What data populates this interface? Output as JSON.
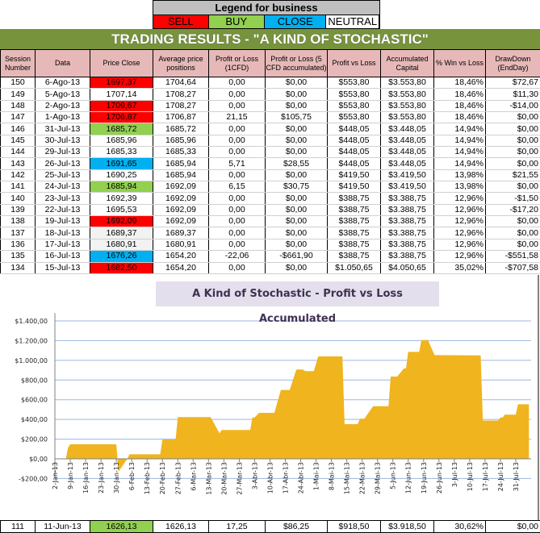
{
  "legend": {
    "title": "Legend for business",
    "items": [
      {
        "label": "SELL",
        "color": "#ff0000"
      },
      {
        "label": "BUY",
        "color": "#92d050"
      },
      {
        "label": "CLOSE",
        "color": "#00b0f0"
      },
      {
        "label": "NEUTRAL",
        "color": "#ffffff"
      }
    ]
  },
  "title": "TRADING RESULTS - \"A KIND OF STOCHASTIC\"",
  "columns": [
    "Session Number",
    "Data",
    "Price Close",
    "Average price positions",
    "Profit or Loss (1CFD)",
    "Profit or Loss (5 CFD accumulated)",
    "Profit vs Loss",
    "Accumulated Capital",
    "% Win vs Loss",
    "DrawDown (EndDay)"
  ],
  "colors": {
    "sell": "#ff0000",
    "buy": "#92d050",
    "close": "#00b0f0",
    "neutral": "#ffffff",
    "grey": "#f2f2f2"
  },
  "rows": [
    [
      "150",
      "6-Ago-13",
      "1697,37",
      "1704,64",
      "0,00",
      "$0,00",
      "$553,80",
      "$3.553,80",
      "18,46%",
      "$72,67",
      "sell"
    ],
    [
      "149",
      "5-Ago-13",
      "1707,14",
      "1708,27",
      "0,00",
      "$0,00",
      "$553,80",
      "$3.553,80",
      "18,46%",
      "$11,30",
      "neutral"
    ],
    [
      "148",
      "2-Ago-13",
      "1709,67",
      "1708,27",
      "0,00",
      "$0,00",
      "$553,80",
      "$3.553,80",
      "18,46%",
      "-$14,00",
      "sell"
    ],
    [
      "147",
      "1-Ago-13",
      "1706,87",
      "1706,87",
      "21,15",
      "$105,75",
      "$553,80",
      "$3.553,80",
      "18,46%",
      "$0,00",
      "sell"
    ],
    [
      "146",
      "31-Jul-13",
      "1685,72",
      "1685,72",
      "0,00",
      "$0,00",
      "$448,05",
      "$3.448,05",
      "14,94%",
      "$0,00",
      "buy"
    ],
    [
      "145",
      "30-Jul-13",
      "1685,96",
      "1685,96",
      "0,00",
      "$0,00",
      "$448,05",
      "$3.448,05",
      "14,94%",
      "$0,00",
      "neutral"
    ],
    [
      "144",
      "29-Jul-13",
      "1685,33",
      "1685,33",
      "0,00",
      "$0,00",
      "$448,05",
      "$3.448,05",
      "14,94%",
      "$0,00",
      "neutral"
    ],
    [
      "143",
      "26-Jul-13",
      "1691,65",
      "1685,94",
      "5,71",
      "$28,55",
      "$448,05",
      "$3.448,05",
      "14,94%",
      "$0,00",
      "close"
    ],
    [
      "142",
      "25-Jul-13",
      "1690,25",
      "1685,94",
      "0,00",
      "$0,00",
      "$419,50",
      "$3.419,50",
      "13,98%",
      "$21,55",
      "neutral"
    ],
    [
      "141",
      "24-Jul-13",
      "1685,94",
      "1692,09",
      "6,15",
      "$30,75",
      "$419,50",
      "$3.419,50",
      "13,98%",
      "$0,00",
      "buy"
    ],
    [
      "140",
      "23-Jul-13",
      "1692,39",
      "1692,09",
      "0,00",
      "$0,00",
      "$388,75",
      "$3.388,75",
      "12,96%",
      "-$1,50",
      "neutral"
    ],
    [
      "139",
      "22-Jul-13",
      "1695,53",
      "1692,09",
      "0,00",
      "$0,00",
      "$388,75",
      "$3.388,75",
      "12,96%",
      "-$17,20",
      "neutral"
    ],
    [
      "138",
      "19-Jul-13",
      "1692,09",
      "1692,09",
      "0,00",
      "$0,00",
      "$388,75",
      "$3.388,75",
      "12,96%",
      "$0,00",
      "sell"
    ],
    [
      "137",
      "18-Jul-13",
      "1689,37",
      "1689,37",
      "0,00",
      "$0,00",
      "$388,75",
      "$3.388,75",
      "12,96%",
      "$0,00",
      "grey"
    ],
    [
      "136",
      "17-Jul-13",
      "1680,91",
      "1680,91",
      "0,00",
      "$0,00",
      "$388,75",
      "$3.388,75",
      "12,96%",
      "$0,00",
      "grey"
    ],
    [
      "135",
      "16-Jul-13",
      "1676,26",
      "1654,20",
      "-22,06",
      "-$661,90",
      "$388,75",
      "$3.388,75",
      "12,96%",
      "-$551,58",
      "close"
    ],
    [
      "134",
      "15-Jul-13",
      "1682,50",
      "1654,20",
      "0,00",
      "$0,00",
      "$1.050,65",
      "$4.050,65",
      "35,02%",
      "-$707,58",
      "sell"
    ]
  ],
  "bottom_row": [
    "111",
    "11-Jun-13",
    "1626,13",
    "1626,13",
    "17,25",
    "$86,25",
    "$918,50",
    "$3.918,50",
    "30,62%",
    "$0,00",
    "buy"
  ],
  "chart_data": {
    "type": "area",
    "title": "A Kind of Stochastic - Profit vs Loss Accumulated",
    "ylim": [
      -200,
      1400
    ],
    "yticks": [
      "-$200,00",
      "$0,00",
      "$200,00",
      "$400,00",
      "$600,00",
      "$800,00",
      "$1.000,00",
      "$1.200,00",
      "$1.400,00"
    ],
    "ytick_values": [
      -200,
      0,
      200,
      400,
      600,
      800,
      1000,
      1200,
      1400
    ],
    "xlim": [
      "2013-01-02",
      "2013-08-07"
    ],
    "xticks": [
      "2-Jan-13",
      "9-Jan-13",
      "16-Jan-13",
      "23-Jan-13",
      "30-Jan-13",
      "6-Feb-13",
      "13-Feb-13",
      "20-Feb-13",
      "27-Feb-13",
      "6-Mar-13",
      "13-Mar-13",
      "20-Mar-13",
      "27-Mar-13",
      "3-Abr-13",
      "10-Abr-13",
      "17-Abr-13",
      "24-Abr-13",
      "1-Mai-13",
      "8-Mai-13",
      "15-Mai-13",
      "22-Mai-13",
      "29-Mai-13",
      "5-Jun-13",
      "12-Jun-13",
      "19-Jun-13",
      "26-Jun-13",
      "3-Jul-13",
      "10-Jul-13",
      "17-Jul-13",
      "24-Jul-13",
      "31-Jul-13"
    ],
    "grid": true,
    "color": "#f0b41e",
    "x": [
      "2013-01-07",
      "2013-01-08",
      "2013-01-09",
      "2013-01-30",
      "2013-01-31",
      "2013-02-04",
      "2013-02-05",
      "2013-02-19",
      "2013-02-20",
      "2013-02-26",
      "2013-02-27",
      "2013-03-14",
      "2013-03-18",
      "2013-03-19",
      "2013-04-01",
      "2013-04-02",
      "2013-04-03",
      "2013-04-05",
      "2013-04-12",
      "2013-04-15",
      "2013-04-19",
      "2013-04-22",
      "2013-04-25",
      "2013-04-26",
      "2013-04-30",
      "2013-05-02",
      "2013-05-13",
      "2013-05-14",
      "2013-05-20",
      "2013-05-21",
      "2013-05-23",
      "2013-05-27",
      "2013-06-03",
      "2013-06-04",
      "2013-06-07",
      "2013-06-10",
      "2013-06-11",
      "2013-06-12",
      "2013-06-17",
      "2013-06-18",
      "2013-06-21",
      "2013-06-24",
      "2013-07-15",
      "2013-07-16",
      "2013-07-23",
      "2013-07-24",
      "2013-07-25",
      "2013-07-26",
      "2013-07-31",
      "2013-08-01",
      "2013-08-06"
    ],
    "y": [
      0,
      115,
      147,
      147,
      -131,
      0,
      46,
      46,
      196,
      196,
      423,
      423,
      259,
      292,
      292,
      420,
      420,
      467,
      467,
      699,
      699,
      906,
      906,
      890,
      890,
      1040,
      1040,
      352,
      352,
      407,
      407,
      535,
      535,
      835,
      835,
      917,
      918.5,
      1086,
      1086,
      1206,
      1206,
      1053,
      1050.65,
      388.75,
      388.75,
      419.5,
      419.5,
      448.05,
      448.05,
      553.8,
      553.8
    ]
  }
}
